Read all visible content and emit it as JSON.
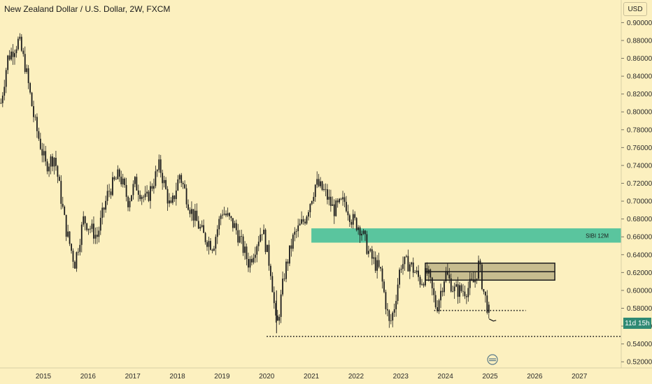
{
  "header": {
    "title": "New Zealand Dollar / U.S. Dollar, 2W, FXCM"
  },
  "price_axis": {
    "currency": "USD",
    "countdown": "11d 15h"
  },
  "chart_data": {
    "type": "candlestick",
    "ylim": [
      0.51,
      0.91
    ],
    "x_range": [
      2014.05,
      2027.95
    ],
    "y_ticks": [
      "0.90000",
      "0.88000",
      "0.86000",
      "0.84000",
      "0.82000",
      "0.80000",
      "0.78000",
      "0.76000",
      "0.74000",
      "0.72000",
      "0.70000",
      "0.68000",
      "0.66000",
      "0.64000",
      "0.62000",
      "0.60000",
      "0.58000",
      "0.56000",
      "0.54000",
      "0.52000"
    ],
    "x_ticks": [
      {
        "label": "2015",
        "x": 2015
      },
      {
        "label": "2016",
        "x": 2016
      },
      {
        "label": "2017",
        "x": 2017
      },
      {
        "label": "2018",
        "x": 2018
      },
      {
        "label": "2019",
        "x": 2019
      },
      {
        "label": "2020",
        "x": 2020
      },
      {
        "label": "2021",
        "x": 2021
      },
      {
        "label": "2022",
        "x": 2022
      },
      {
        "label": "2023",
        "x": 2023
      },
      {
        "label": "2024",
        "x": 2024
      },
      {
        "label": "2025",
        "x": 2025
      },
      {
        "label": "2026",
        "x": 2026
      },
      {
        "label": "2027",
        "x": 2027
      }
    ],
    "price_path": [
      [
        2014.05,
        0.81
      ],
      [
        2014.2,
        0.86
      ],
      [
        2014.45,
        0.88
      ],
      [
        2014.6,
        0.85
      ],
      [
        2014.8,
        0.79
      ],
      [
        2015.05,
        0.74
      ],
      [
        2015.25,
        0.75
      ],
      [
        2015.5,
        0.67
      ],
      [
        2015.7,
        0.63
      ],
      [
        2015.9,
        0.68
      ],
      [
        2016.2,
        0.66
      ],
      [
        2016.45,
        0.71
      ],
      [
        2016.7,
        0.73
      ],
      [
        2016.9,
        0.7
      ],
      [
        2017.05,
        0.72
      ],
      [
        2017.3,
        0.7
      ],
      [
        2017.6,
        0.74
      ],
      [
        2017.85,
        0.69
      ],
      [
        2018.05,
        0.73
      ],
      [
        2018.3,
        0.69
      ],
      [
        2018.6,
        0.66
      ],
      [
        2018.8,
        0.65
      ],
      [
        2019.0,
        0.69
      ],
      [
        2019.3,
        0.67
      ],
      [
        2019.6,
        0.63
      ],
      [
        2019.9,
        0.67
      ],
      [
        2020.1,
        0.62
      ],
      [
        2020.22,
        0.555
      ],
      [
        2020.4,
        0.62
      ],
      [
        2020.6,
        0.66
      ],
      [
        2020.85,
        0.68
      ],
      [
        2021.1,
        0.72
      ],
      [
        2021.3,
        0.71
      ],
      [
        2021.5,
        0.69
      ],
      [
        2021.75,
        0.7
      ],
      [
        2021.9,
        0.68
      ],
      [
        2022.1,
        0.67
      ],
      [
        2022.3,
        0.64
      ],
      [
        2022.55,
        0.62
      ],
      [
        2022.75,
        0.56
      ],
      [
        2022.85,
        0.58
      ],
      [
        2023.0,
        0.63
      ],
      [
        2023.2,
        0.63
      ],
      [
        2023.45,
        0.61
      ],
      [
        2023.6,
        0.62
      ],
      [
        2023.8,
        0.58
      ],
      [
        2024.0,
        0.62
      ],
      [
        2024.2,
        0.6
      ],
      [
        2024.45,
        0.6
      ],
      [
        2024.65,
        0.61
      ],
      [
        2024.75,
        0.63
      ],
      [
        2024.85,
        0.6
      ],
      [
        2025.0,
        0.57
      ]
    ],
    "horizontal_lines": [
      {
        "price": 0.5485,
        "x_start": 2020.0,
        "x_end": 2027.95,
        "style": "dotted"
      },
      {
        "price": 0.5775,
        "x_start": 2023.75,
        "x_end": 2025.8,
        "style": "dotted"
      }
    ],
    "zones": [
      {
        "label": "SIBI 12M",
        "y_low": 0.6535,
        "y_high": 0.6695,
        "x_start": 2021.0,
        "x_end": 2027.95,
        "color": "#5ac59e"
      },
      {
        "label": "",
        "y_low": 0.6115,
        "y_high": 0.6305,
        "x_start": 2023.55,
        "x_end": 2026.45,
        "color": "#c7bd8f"
      }
    ],
    "colors": {
      "candle": "#1b1b1b",
      "background": "#fcf0bf",
      "badge": "#2f8a74"
    }
  }
}
